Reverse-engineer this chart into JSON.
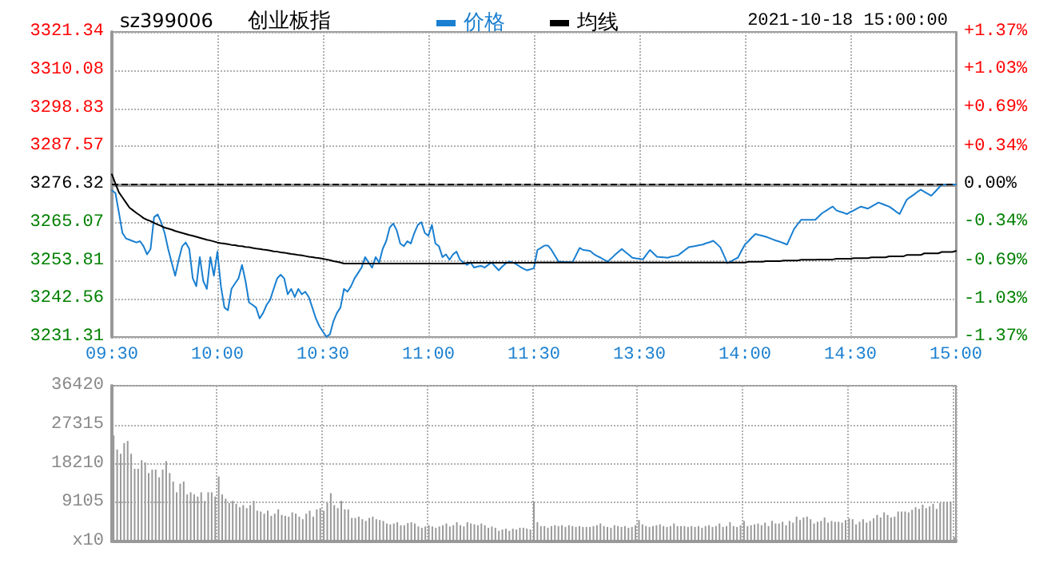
{
  "chart_data": [
    {
      "type": "line",
      "title": "创业板指",
      "subtitle": "sz399006",
      "annotations": [
        "2021-10-18 15:00:00"
      ],
      "categories": [
        "09:30",
        null,
        null,
        null,
        null,
        null,
        null,
        null,
        null,
        null,
        null,
        null,
        null,
        null,
        null,
        null,
        null,
        null,
        null,
        null,
        null,
        null,
        null,
        null,
        null,
        null,
        null,
        null,
        null,
        null,
        "10:00",
        null,
        null,
        null,
        null,
        null,
        null,
        null,
        null,
        null,
        null,
        null,
        null,
        null,
        null,
        null,
        null,
        null,
        null,
        null,
        null,
        null,
        null,
        null,
        null,
        null,
        null,
        null,
        null,
        null,
        "10:30",
        null,
        null,
        null,
        null,
        null,
        null,
        null,
        null,
        null,
        null,
        null,
        null,
        null,
        null,
        null,
        null,
        null,
        null,
        null,
        null,
        null,
        null,
        null,
        null,
        null,
        null,
        null,
        null,
        null,
        "11:00",
        null,
        null,
        null,
        null,
        null,
        null,
        null,
        null,
        null,
        null,
        null,
        null,
        null,
        null,
        null,
        null,
        null,
        null,
        null,
        null,
        null,
        null,
        null,
        null,
        null,
        null,
        null,
        null,
        null,
        "11:30",
        null,
        null,
        null,
        null,
        null,
        null,
        null,
        null,
        null,
        null,
        null,
        null,
        null,
        null,
        null,
        null,
        null,
        null,
        null,
        null,
        null,
        null,
        null,
        null,
        null,
        null,
        null,
        null,
        null,
        "13:30",
        null,
        null,
        null,
        null,
        null,
        null,
        null,
        null,
        null,
        null,
        null,
        null,
        null,
        null,
        null,
        null,
        null,
        null,
        null,
        null,
        null,
        null,
        null,
        null,
        null,
        null,
        null,
        null,
        null,
        "14:00",
        null,
        null,
        null,
        null,
        null,
        null,
        null,
        null,
        null,
        null,
        null,
        null,
        null,
        null,
        null,
        null,
        null,
        null,
        null,
        null,
        null,
        null,
        null,
        null,
        null,
        null,
        null,
        null,
        null,
        "14:30",
        null,
        null,
        null,
        null,
        null,
        null,
        null,
        null,
        null,
        null,
        null,
        null,
        null,
        null,
        null,
        null,
        null,
        null,
        null,
        null,
        null,
        null,
        null,
        null,
        null,
        null,
        null,
        null,
        null,
        "15:00"
      ],
      "ylim": [
        3231.31,
        3321.34
      ],
      "yticks": [
        3231.31,
        3242.56,
        3253.81,
        3265.07,
        3276.32,
        3287.57,
        3298.83,
        3310.08,
        3321.34
      ],
      "y2lim": [
        -1.37,
        1.37
      ],
      "y2ticks": [
        {
          "value": -1.37,
          "label": "-1.37%"
        },
        {
          "value": -1.03,
          "label": "-1.03%"
        },
        {
          "value": -0.69,
          "label": "-0.69%"
        },
        {
          "value": -0.34,
          "label": "-0.34%"
        },
        {
          "value": 0,
          "label": "0.00%"
        },
        {
          "value": 0.34,
          "label": "+0.34%"
        },
        {
          "value": 0.69,
          "label": "+0.69%"
        },
        {
          "value": 1.03,
          "label": "+1.03%"
        },
        {
          "value": 1.37,
          "label": "+1.37%"
        }
      ],
      "grid": true,
      "legend": "top",
      "marker": "none",
      "line_style": "solid",
      "ref_lines": [
        {
          "axis": "y",
          "value": 3276.32,
          "label": null,
          "color": "#000000",
          "line_style": "dashed"
        }
      ],
      "series": [
        {
          "name": "价格",
          "color": "#1a7fd0",
          "values": [
            3274.6,
            3273.8,
            3268.0,
            3262.0,
            3260.4,
            3260.0,
            3259.6,
            3259.2,
            3259.6,
            3258.1,
            3255.7,
            3257.3,
            3266.7,
            3267.5,
            3265.2,
            3262.0,
            3257.3,
            3253.3,
            3249.4,
            3254.1,
            3258.1,
            3259.2,
            3257.3,
            3248.6,
            3246.3,
            3254.9,
            3247.8,
            3245.5,
            3254.9,
            3249.4,
            3256.5,
            3246.3,
            3240.0,
            3239.2,
            3245.5,
            3247.1,
            3248.6,
            3252.6,
            3247.8,
            3241.5,
            3240.8,
            3240.0,
            3236.8,
            3238.4,
            3240.8,
            3242.3,
            3245.5,
            3248.6,
            3249.7,
            3248.6,
            3243.9,
            3245.5,
            3243.1,
            3245.5,
            3243.9,
            3244.7,
            3243.1,
            3240.0,
            3236.8,
            3234.5,
            3232.9,
            3231.4,
            3232.1,
            3236.0,
            3238.4,
            3240.0,
            3245.5,
            3244.7,
            3246.3,
            3248.6,
            3250.2,
            3251.8,
            3254.9,
            3253.3,
            3251.8,
            3254.9,
            3253.3,
            3257.3,
            3259.6,
            3263.6,
            3264.8,
            3262.8,
            3258.9,
            3258.1,
            3259.6,
            3258.9,
            3262.0,
            3264.4,
            3265.2,
            3262.0,
            3261.2,
            3264.4,
            3258.9,
            3258.1,
            3254.9,
            3255.7,
            3254.1,
            3255.7,
            3256.5,
            3254.1,
            3253.3,
            3252.6,
            3253.3,
            3251.8,
            3252.1,
            3252.3,
            3251.8,
            3252.6,
            3253.3,
            3252.1,
            3251.0,
            3252.1,
            3253.0,
            3253.6,
            3253.3,
            3252.8,
            3252.1,
            3251.5,
            3251.0,
            3251.3,
            3251.6,
            3257.0,
            3257.6,
            3258.3,
            3258.3,
            3257.0,
            3255.3,
            3253.6,
            3253.5,
            3253.4,
            3253.4,
            3253.4,
            3255.5,
            3257.6,
            3257.0,
            3256.9,
            3256.7,
            3255.8,
            3255.2,
            3254.7,
            3254.1,
            3253.6,
            3254.5,
            3255.5,
            3256.4,
            3257.3,
            3256.4,
            3255.6,
            3254.7,
            3254.5,
            3254.4,
            3254.2,
            3255.6,
            3257.0,
            3256.0,
            3255.0,
            3254.9,
            3254.8,
            3254.7,
            3255.0,
            3255.2,
            3255.4,
            3256.2,
            3257.0,
            3257.8,
            3258.0,
            3258.2,
            3258.4,
            3258.6,
            3259.0,
            3259.3,
            3259.7,
            3258.8,
            3257.8,
            3255.5,
            3253.1,
            3253.6,
            3254.2,
            3254.7,
            3256.7,
            3258.6,
            3259.6,
            3260.7,
            3261.7,
            3261.4,
            3261.2,
            3260.9,
            3260.5,
            3260.1,
            3259.7,
            3259.4,
            3259.0,
            3258.6,
            3260.9,
            3263.2,
            3264.6,
            3265.9,
            3265.9,
            3265.9,
            3265.9,
            3265.9,
            3266.9,
            3267.9,
            3268.5,
            3269.2,
            3269.8,
            3268.7,
            3268.3,
            3268.0,
            3267.6,
            3268.2,
            3268.7,
            3269.3,
            3269.8,
            3269.5,
            3269.2,
            3269.8,
            3270.4,
            3271.0,
            3270.6,
            3270.2,
            3269.8,
            3269.1,
            3268.3,
            3267.6,
            3269.7,
            3271.8,
            3272.6,
            3273.3,
            3274.1,
            3274.8,
            3274.2,
            3273.6,
            3273.0,
            3274.1,
            3275.2,
            3276.3,
            3276.3,
            3276.3,
            3276.3,
            3276.3
          ]
        },
        {
          "name": "均线",
          "color": "#000000",
          "values": [
            3279.3,
            3276.6,
            3274.0,
            3272.5,
            3271.0,
            3269.5,
            3268.7,
            3267.9,
            3267.2,
            3266.4,
            3265.9,
            3265.5,
            3265.0,
            3264.5,
            3264.1,
            3263.6,
            3263.3,
            3263.0,
            3262.6,
            3262.3,
            3262.0,
            3261.7,
            3261.4,
            3261.2,
            3260.9,
            3260.6,
            3260.3,
            3260.0,
            3259.8,
            3259.5,
            3259.2,
            3259.0,
            3258.9,
            3258.7,
            3258.5,
            3258.4,
            3258.2,
            3258.1,
            3257.9,
            3257.8,
            3257.6,
            3257.4,
            3257.3,
            3257.1,
            3257.0,
            3256.8,
            3256.6,
            3256.5,
            3256.3,
            3256.2,
            3256.0,
            3255.8,
            3255.7,
            3255.5,
            3255.4,
            3255.2,
            3255.0,
            3254.9,
            3254.7,
            3254.6,
            3254.4,
            3254.2,
            3254.0,
            3253.7,
            3253.5,
            3253.3,
            3253.0,
            3253.0,
            3253.0,
            3253.0,
            3253.0,
            3253.0,
            3253.0,
            3253.0,
            3253.0,
            3253.0,
            3253.0,
            3253.0,
            3253.0,
            3253.0,
            3253.0,
            3253.0,
            3253.0,
            3253.0,
            3253.0,
            3253.0,
            3253.0,
            3253.0,
            3253.0,
            3253.0,
            3253.0,
            3253.0,
            3253.0,
            3253.0,
            3253.0,
            3253.0,
            3253.0,
            3253.0,
            3253.0,
            3253.0,
            3253.0,
            3253.2,
            3253.2,
            3253.2,
            3253.2,
            3253.2,
            3253.2,
            3253.2,
            3253.2,
            3253.2,
            3253.2,
            3253.2,
            3253.2,
            3253.2,
            3253.2,
            3253.2,
            3253.2,
            3253.2,
            3253.2,
            3253.2,
            3253.2,
            3253.3,
            3253.3,
            3253.3,
            3253.3,
            3253.3,
            3253.3,
            3253.3,
            3253.3,
            3253.3,
            3253.3,
            3253.3,
            3253.3,
            3253.3,
            3253.3,
            3253.3,
            3253.3,
            3253.3,
            3253.3,
            3253.3,
            3253.3,
            3253.3,
            3253.3,
            3253.3,
            3253.3,
            3253.3,
            3253.3,
            3253.3,
            3253.3,
            3253.3,
            3253.3,
            3253.3,
            3253.3,
            3253.3,
            3253.3,
            3253.3,
            3253.3,
            3253.3,
            3253.3,
            3253.3,
            3253.3,
            3253.3,
            3253.3,
            3253.3,
            3253.3,
            3253.3,
            3253.3,
            3253.3,
            3253.3,
            3253.3,
            3253.3,
            3253.3,
            3253.3,
            3253.3,
            3253.3,
            3253.3,
            3253.3,
            3253.3,
            3253.3,
            3253.3,
            3253.3,
            3253.5,
            3253.5,
            3253.5,
            3253.5,
            3253.5,
            3253.7,
            3253.7,
            3253.7,
            3253.7,
            3253.7,
            3253.9,
            3253.9,
            3253.9,
            3253.9,
            3253.9,
            3254.1,
            3254.1,
            3254.1,
            3254.1,
            3254.1,
            3254.2,
            3254.2,
            3254.2,
            3254.2,
            3254.2,
            3254.4,
            3254.4,
            3254.4,
            3254.4,
            3254.4,
            3254.6,
            3254.6,
            3254.6,
            3254.6,
            3254.6,
            3254.8,
            3254.8,
            3254.8,
            3254.8,
            3254.8,
            3255.1,
            3255.1,
            3255.1,
            3255.1,
            3255.1,
            3255.5,
            3255.5,
            3255.5,
            3255.5,
            3255.5,
            3256.0,
            3256.0,
            3256.0,
            3256.0,
            3256.0,
            3256.4,
            3256.4,
            3256.4,
            3256.4,
            3256.7
          ]
        }
      ]
    },
    {
      "type": "bar",
      "tick_labels": "y",
      "grid": true,
      "categories": [
        null,
        null,
        null,
        null,
        null,
        null,
        null,
        null,
        null,
        null,
        null,
        null,
        null,
        null,
        null,
        null,
        null,
        null,
        null,
        null,
        null,
        null,
        null,
        null,
        null,
        null,
        null,
        null,
        null,
        null,
        null,
        null,
        null,
        null,
        null,
        null,
        null,
        null,
        null,
        null,
        null,
        null,
        null,
        null,
        null,
        null,
        null,
        null,
        null,
        null,
        null,
        null,
        null,
        null,
        null,
        null,
        null,
        null,
        null,
        null,
        null,
        null,
        null,
        null,
        null,
        null,
        null,
        null,
        null,
        null,
        null,
        null,
        null,
        null,
        null,
        null,
        null,
        null,
        null,
        null,
        null,
        null,
        null,
        null,
        null,
        null,
        null,
        null,
        null,
        null,
        null,
        null,
        null,
        null,
        null,
        null,
        null,
        null,
        null,
        null,
        null,
        null,
        null,
        null,
        null,
        null,
        null,
        null,
        null,
        null,
        null,
        null,
        null,
        null,
        null,
        null,
        null,
        null,
        null,
        null,
        null,
        null,
        null,
        null,
        null,
        null,
        null,
        null,
        null,
        null,
        null,
        null,
        null,
        null,
        null,
        null,
        null,
        null,
        null,
        null,
        null,
        null,
        null,
        null,
        null,
        null,
        null,
        null,
        null,
        null,
        null,
        null,
        null,
        null,
        null,
        null,
        null,
        null,
        null,
        null,
        null,
        null,
        null,
        null,
        null,
        null,
        null,
        null,
        null,
        null,
        null,
        null,
        null,
        null,
        null,
        null,
        null,
        null,
        null,
        null,
        null,
        null,
        null,
        null,
        null,
        null,
        null,
        null,
        null,
        null,
        null,
        null,
        null,
        null,
        null,
        null,
        null,
        null,
        null,
        null,
        null,
        null,
        null,
        null,
        null,
        null,
        null,
        null,
        null,
        null,
        null,
        null,
        null,
        null,
        null,
        null,
        null,
        null,
        null,
        null,
        null,
        null,
        null,
        null,
        null,
        null,
        null,
        null,
        null,
        null,
        null,
        null,
        null,
        null,
        null,
        null,
        null,
        null,
        null,
        null,
        null
      ],
      "ylim": [
        0,
        36420
      ],
      "yticks": [
        {
          "value": 0,
          "label": "x10"
        },
        9105,
        18210,
        27315,
        36420
      ],
      "values": [
        24800,
        21500,
        20500,
        23000,
        23500,
        20500,
        17000,
        17000,
        19000,
        18500,
        16000,
        16800,
        16800,
        15000,
        16800,
        18800,
        16000,
        14000,
        11500,
        13500,
        14000,
        11000,
        11500,
        11000,
        10500,
        11500,
        9500,
        11500,
        11500,
        10500,
        15200,
        11000,
        10000,
        9000,
        9500,
        8800,
        8000,
        8500,
        7800,
        8500,
        9500,
        7200,
        7000,
        6500,
        7200,
        6000,
        6500,
        7500,
        6200,
        6000,
        5800,
        6800,
        6500,
        5800,
        5200,
        6500,
        7200,
        5800,
        7500,
        7800,
        7200,
        9000,
        11300,
        8500,
        7800,
        9500,
        7500,
        7500,
        5500,
        5500,
        5800,
        5200,
        4800,
        5500,
        5800,
        5200,
        5000,
        4800,
        4200,
        4000,
        4200,
        4500,
        3800,
        3800,
        4300,
        4500,
        4200,
        3500,
        3200,
        3500,
        3800,
        3500,
        3200,
        3500,
        3800,
        4200,
        3500,
        3800,
        4500,
        3800,
        3500,
        4500,
        4200,
        4000,
        3800,
        4200,
        3800,
        3200,
        3500,
        3200,
        2500,
        2800,
        3000,
        2500,
        3000,
        2800,
        3200,
        3200,
        3000,
        2800,
        9300,
        4500,
        3600,
        3600,
        3200,
        3600,
        3800,
        3600,
        3800,
        3400,
        3800,
        3600,
        3400,
        3600,
        3400,
        3400,
        3400,
        3600,
        3800,
        4200,
        3600,
        3400,
        3200,
        3800,
        3600,
        3400,
        3600,
        3200,
        3400,
        3800,
        5000,
        4000,
        3600,
        3400,
        3600,
        3800,
        4000,
        3600,
        3400,
        3600,
        4200,
        3600,
        3600,
        3600,
        3400,
        3600,
        3400,
        3600,
        3200,
        3600,
        3800,
        3400,
        3600,
        4200,
        3400,
        3600,
        4500,
        3600,
        3400,
        3800,
        4800,
        3600,
        3800,
        4000,
        4200,
        3800,
        4400,
        3600,
        4800,
        4200,
        4200,
        4600,
        3800,
        4800,
        4400,
        5800,
        5000,
        5600,
        5800,
        5200,
        4200,
        4600,
        4800,
        5600,
        4400,
        4800,
        4600,
        4600,
        4400,
        5000,
        5400,
        5200,
        4000,
        4600,
        5200,
        4400,
        4800,
        5400,
        6200,
        5600,
        6800,
        6200,
        5600,
        5800,
        7000,
        7000,
        7000,
        6800,
        7400,
        8000,
        7600,
        8600,
        7800,
        8200,
        8800,
        7600,
        9000,
        9200,
        9200,
        9300,
        1000
      ],
      "color": "#999999"
    }
  ]
}
